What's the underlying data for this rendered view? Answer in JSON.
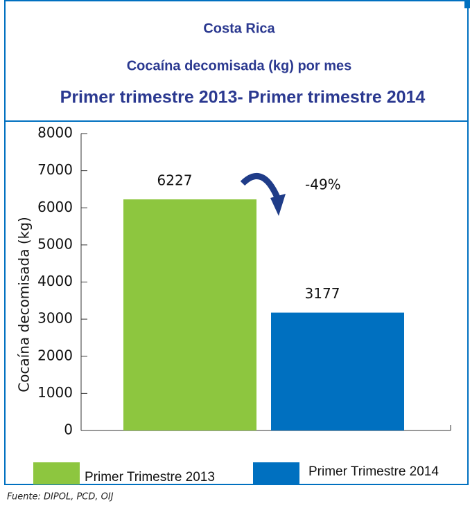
{
  "chart_data": {
    "type": "bar",
    "title": "Costa Rica",
    "subtitle": "Cocaína decomisada (kg) por mes",
    "subtitle2": "Primer trimestre 2013- Primer trimestre 2014",
    "y_label": "Cocaína decomisada (kg)",
    "categories": [
      "Primer Trimestre 2013",
      "Primer Trimestre 2014"
    ],
    "values": [
      6227,
      3177
    ],
    "colors": [
      "#8dc63f",
      "#0070c0"
    ],
    "annotation": "-49%",
    "source": "Fuente: DIPOL, PCD, OIJ",
    "ylim": [
      0,
      8000
    ],
    "yticks": [
      0,
      1000,
      2000,
      3000,
      4000,
      5000,
      6000,
      7000,
      8000
    ],
    "legend": "bottom"
  }
}
